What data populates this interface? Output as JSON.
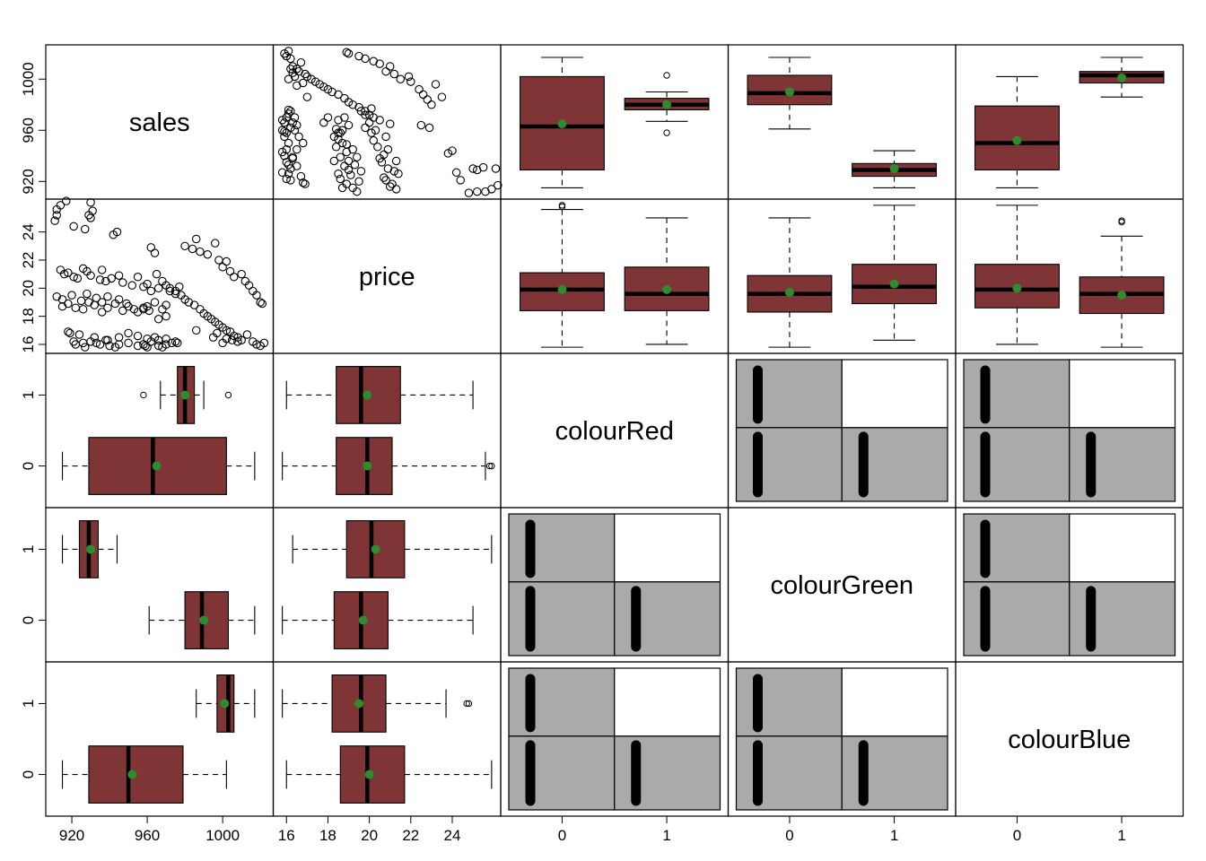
{
  "chart_data": {
    "type": "pairs",
    "title": "",
    "variables": [
      "sales",
      "price",
      "colourRed",
      "colourGreen",
      "colourBlue"
    ],
    "colors": {
      "box_fill": "#7f3535",
      "mean_point": "#2e8b2e",
      "mosaic_fill": "#aaaaaa",
      "mosaic_empty": "#ffffff",
      "ink": "#000000"
    },
    "axes": {
      "sales": {
        "range": [
          911,
          1022
        ],
        "ticks": [
          920,
          960,
          1000
        ]
      },
      "price": {
        "range": [
          15.8,
          25.9
        ],
        "ticks": [
          16,
          18,
          20,
          22,
          24
        ]
      },
      "binary": {
        "range": [
          -0.5,
          1.5
        ],
        "ticks": [
          0,
          1
        ]
      }
    },
    "scatter_sales_price": [
      [
        912,
        25.6
      ],
      [
        914,
        25.9
      ],
      [
        917,
        26.2
      ],
      [
        929,
        25.2
      ],
      [
        930,
        25.0
      ],
      [
        930,
        26.1
      ],
      [
        931,
        25.5
      ],
      [
        912,
        25.2
      ],
      [
        911,
        24.8
      ],
      [
        927,
        24.2
      ],
      [
        921,
        24.4
      ],
      [
        942,
        23.8
      ],
      [
        944,
        24.0
      ],
      [
        914,
        21.3
      ],
      [
        916,
        21.0
      ],
      [
        918,
        21.1
      ],
      [
        921,
        20.8
      ],
      [
        923,
        20.7
      ],
      [
        926,
        21.4
      ],
      [
        928,
        21.2
      ],
      [
        930,
        20.9
      ],
      [
        935,
        20.6
      ],
      [
        936,
        21.3
      ],
      [
        938,
        20.5
      ],
      [
        941,
        20.7
      ],
      [
        945,
        20.9
      ],
      [
        947,
        20.4
      ],
      [
        952,
        20.2
      ],
      [
        955,
        20.8
      ],
      [
        958,
        20.1
      ],
      [
        960,
        20.3
      ],
      [
        962,
        19.8
      ],
      [
        966,
        20.0
      ],
      [
        970,
        20.2
      ],
      [
        972,
        19.8
      ],
      [
        975,
        19.6
      ],
      [
        977,
        20.1
      ],
      [
        912,
        19.4
      ],
      [
        915,
        19.2
      ],
      [
        920,
        19.5
      ],
      [
        925,
        19.1
      ],
      [
        928,
        19.6
      ],
      [
        933,
        19.3
      ],
      [
        936,
        19.0
      ],
      [
        939,
        19.4
      ],
      [
        945,
        19.2
      ],
      [
        949,
        18.9
      ],
      [
        953,
        18.5
      ],
      [
        958,
        18.6
      ],
      [
        960,
        18.7
      ],
      [
        964,
        19.0
      ],
      [
        968,
        18.5
      ],
      [
        970,
        18.8
      ],
      [
        915,
        18.7
      ],
      [
        918,
        18.9
      ],
      [
        922,
        18.6
      ],
      [
        926,
        18.5
      ],
      [
        929,
        19.0
      ],
      [
        932,
        18.8
      ],
      [
        936,
        18.3
      ],
      [
        939,
        18.6
      ],
      [
        943,
        18.9
      ],
      [
        947,
        18.4
      ],
      [
        950,
        18.7
      ],
      [
        955,
        18.3
      ],
      [
        958,
        18.5
      ],
      [
        961,
        18.4
      ],
      [
        966,
        17.8
      ],
      [
        970,
        18.0
      ],
      [
        921,
        16.2
      ],
      [
        922,
        16.0
      ],
      [
        926,
        16.1
      ],
      [
        927,
        15.8
      ],
      [
        930,
        16.2
      ],
      [
        933,
        16.1
      ],
      [
        935,
        16.0
      ],
      [
        938,
        16.3
      ],
      [
        940,
        15.9
      ],
      [
        943,
        15.8
      ],
      [
        945,
        16.0
      ],
      [
        950,
        16.1
      ],
      [
        955,
        15.9
      ],
      [
        958,
        16.0
      ],
      [
        959,
        15.9
      ],
      [
        960,
        15.8
      ],
      [
        962,
        16.2
      ],
      [
        966,
        15.9
      ],
      [
        968,
        15.8
      ],
      [
        970,
        16.0
      ],
      [
        973,
        16.1
      ],
      [
        976,
        16.1
      ],
      [
        986,
        17.0
      ],
      [
        995,
        16.5
      ],
      [
        997,
        16.8
      ],
      [
        1000,
        16.1
      ],
      [
        1002,
        16.4
      ],
      [
        1005,
        16.3
      ],
      [
        1008,
        16.2
      ],
      [
        1013,
        16.7
      ],
      [
        1016,
        16.2
      ],
      [
        1018,
        16.0
      ],
      [
        1020,
        15.9
      ],
      [
        1022,
        16.1
      ],
      [
        918,
        16.9
      ],
      [
        919,
        16.8
      ],
      [
        924,
        16.7
      ],
      [
        932,
        16.5
      ],
      [
        939,
        16.3
      ],
      [
        945,
        16.5
      ],
      [
        950,
        16.8
      ],
      [
        955,
        16.6
      ],
      [
        960,
        16.4
      ],
      [
        964,
        16.5
      ],
      [
        966,
        16.3
      ],
      [
        970,
        16.4
      ],
      [
        975,
        16.2
      ],
      [
        962,
        22.9
      ],
      [
        964,
        22.5
      ],
      [
        980,
        23.0
      ],
      [
        984,
        22.8
      ],
      [
        986,
        23.5
      ],
      [
        988,
        22.6
      ],
      [
        992,
        22.4
      ],
      [
        996,
        23.2
      ],
      [
        998,
        22.0
      ],
      [
        1000,
        21.5
      ],
      [
        1002,
        21.9
      ],
      [
        1004,
        21.2
      ],
      [
        1006,
        20.8
      ],
      [
        1010,
        21.0
      ],
      [
        1012,
        20.5
      ],
      [
        1014,
        20.2
      ],
      [
        1016,
        19.8
      ],
      [
        1018,
        19.5
      ],
      [
        1020,
        19.0
      ],
      [
        1021,
        18.9
      ],
      [
        965,
        21.0
      ],
      [
        968,
        20.5
      ],
      [
        972,
        20.0
      ],
      [
        975,
        19.8
      ],
      [
        978,
        19.5
      ],
      [
        980,
        19.2
      ],
      [
        982,
        19.0
      ],
      [
        985,
        18.8
      ],
      [
        988,
        18.5
      ],
      [
        990,
        18.2
      ],
      [
        992,
        18.0
      ],
      [
        994,
        17.8
      ],
      [
        996,
        17.6
      ],
      [
        998,
        17.4
      ],
      [
        1000,
        17.2
      ],
      [
        1002,
        17.0
      ],
      [
        1004,
        16.9
      ],
      [
        1006,
        16.6
      ],
      [
        1008,
        16.5
      ],
      [
        1010,
        16.3
      ]
    ],
    "box_stats": {
      "sales_by_colourRed": {
        "0": {
          "min": 915,
          "q1": 929,
          "median": 963,
          "q3": 1002,
          "max": 1017,
          "mean": 965,
          "outliers": []
        },
        "1": {
          "min": 967,
          "q1": 976,
          "median": 980,
          "q3": 985,
          "max": 990,
          "mean": 980,
          "outliers": [
            958,
            1003
          ]
        }
      },
      "sales_by_colourGreen": {
        "0": {
          "min": 961,
          "q1": 980,
          "median": 989,
          "q3": 1003,
          "max": 1017,
          "mean": 990,
          "outliers": []
        },
        "1": {
          "min": 915,
          "q1": 924,
          "median": 929,
          "q3": 934,
          "max": 944,
          "mean": 930,
          "outliers": []
        }
      },
      "sales_by_colourBlue": {
        "0": {
          "min": 915,
          "q1": 929,
          "median": 950,
          "q3": 979,
          "max": 1002,
          "mean": 952,
          "outliers": []
        },
        "1": {
          "min": 986,
          "q1": 997,
          "median": 1003,
          "q3": 1006,
          "max": 1017,
          "mean": 1001,
          "outliers": []
        }
      },
      "price_by_colourRed": {
        "0": {
          "min": 15.8,
          "q1": 18.4,
          "median": 19.9,
          "q3": 21.1,
          "max": 25.6,
          "mean": 19.9,
          "outliers": [
            25.8,
            25.9
          ]
        },
        "1": {
          "min": 16.0,
          "q1": 18.4,
          "median": 19.6,
          "q3": 21.5,
          "max": 25.0,
          "mean": 19.9,
          "outliers": []
        }
      },
      "price_by_colourGreen": {
        "0": {
          "min": 15.8,
          "q1": 18.3,
          "median": 19.6,
          "q3": 20.9,
          "max": 25.0,
          "mean": 19.7,
          "outliers": []
        },
        "1": {
          "min": 16.3,
          "q1": 18.9,
          "median": 20.1,
          "q3": 21.7,
          "max": 25.9,
          "mean": 20.3,
          "outliers": []
        }
      },
      "price_by_colourBlue": {
        "0": {
          "min": 16.0,
          "q1": 18.6,
          "median": 19.9,
          "q3": 21.7,
          "max": 25.9,
          "mean": 20.0,
          "outliers": []
        },
        "1": {
          "min": 15.8,
          "q1": 18.2,
          "median": 19.6,
          "q3": 20.8,
          "max": 23.7,
          "mean": 19.5,
          "outliers": [
            24.7,
            24.8
          ]
        }
      }
    },
    "mosaic": {
      "colourRed_colourGreen": {
        "00_share": 0.45,
        "split_x": 0.5,
        "counts": {
          "0,0": 1,
          "0,1": 1,
          "1,0": 1,
          "1,1": 0
        }
      },
      "colourRed_colourBlue": {
        "split_x": 0.5,
        "counts": {
          "0,0": 1,
          "0,1": 1,
          "1,0": 1,
          "1,1": 0
        }
      },
      "colourGreen_colourBlue": {
        "split_x": 0.5,
        "counts": {
          "0,0": 1,
          "0,1": 1,
          "1,0": 1,
          "1,1": 0
        }
      }
    }
  }
}
